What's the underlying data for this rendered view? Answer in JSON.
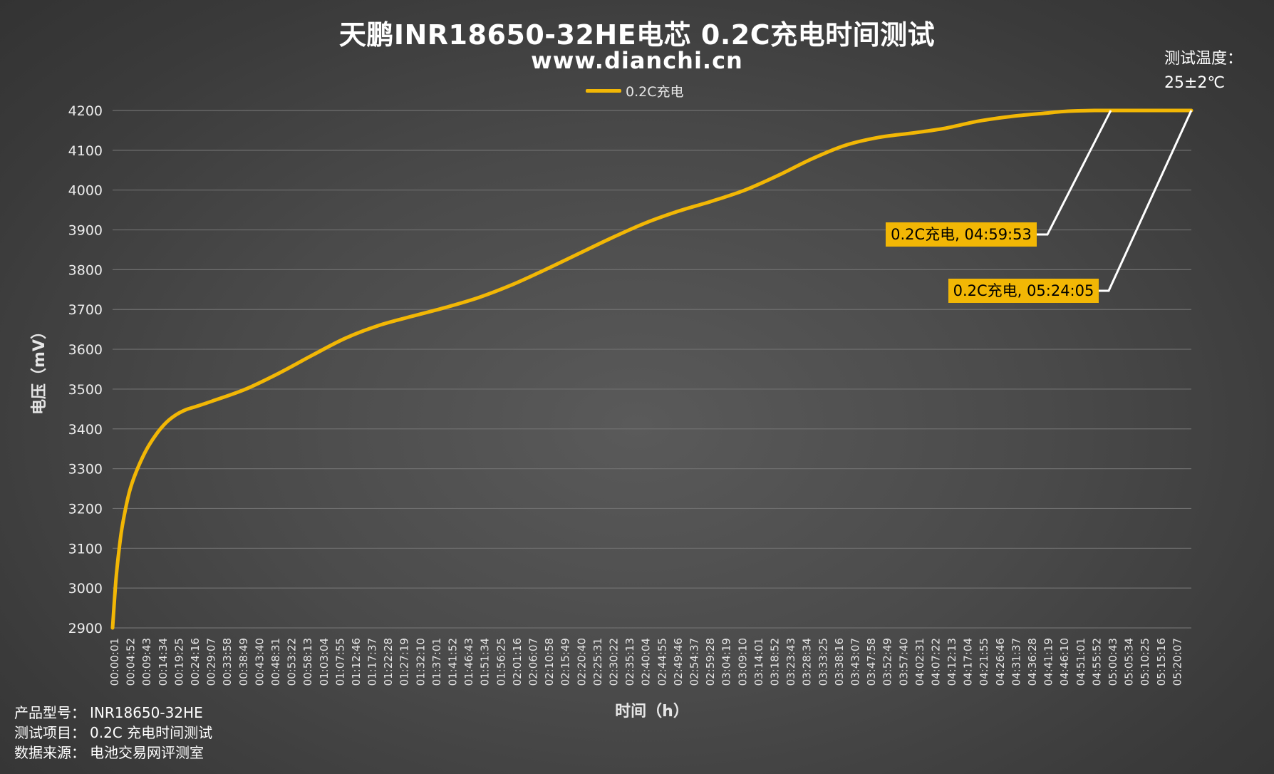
{
  "title": "天鹏INR18650-32HE电芯 0.2C充电时间测试",
  "subtitle": "www.dianchi.cn",
  "temperature": {
    "label": "测试温度：",
    "value": "25±2℃"
  },
  "legend": {
    "label": "0.2C充电",
    "color": "#f2b705"
  },
  "info": [
    {
      "label": "产品型号：",
      "value": "INR18650-32HE"
    },
    {
      "label": "测试项目：",
      "value": "0.2C 充电时间测试"
    },
    {
      "label": "数据来源：",
      "value": "电池交易网评测室"
    }
  ],
  "chart_data": {
    "type": "line",
    "title": "天鹏INR18650-32HE电芯 0.2C充电时间测试",
    "xlabel": "时间（h）",
    "ylabel": "电压（mV）",
    "ylim": [
      2900,
      4200
    ],
    "yticks": [
      2900,
      3000,
      3100,
      3200,
      3300,
      3400,
      3500,
      3600,
      3700,
      3800,
      3900,
      4000,
      4100,
      4200
    ],
    "xticks": [
      "00:00:01",
      "00:04:52",
      "00:09:43",
      "00:14:34",
      "00:19:25",
      "00:24:16",
      "00:29:07",
      "00:33:58",
      "00:38:49",
      "00:43:40",
      "00:48:31",
      "00:53:22",
      "00:58:13",
      "01:03:04",
      "01:07:55",
      "01:12:46",
      "01:17:37",
      "01:22:28",
      "01:27:19",
      "01:32:10",
      "01:37:01",
      "01:41:52",
      "01:46:43",
      "01:51:34",
      "01:56:25",
      "02:01:16",
      "02:06:07",
      "02:10:58",
      "02:15:49",
      "02:20:40",
      "02:25:31",
      "02:30:22",
      "02:35:13",
      "02:40:04",
      "02:44:55",
      "02:49:46",
      "02:54:37",
      "02:59:28",
      "03:04:19",
      "03:09:10",
      "03:14:01",
      "03:18:52",
      "03:23:43",
      "03:28:34",
      "03:33:25",
      "03:38:16",
      "03:43:07",
      "03:47:58",
      "03:52:49",
      "03:57:40",
      "04:02:31",
      "04:07:22",
      "04:12:13",
      "04:17:04",
      "04:21:55",
      "04:26:46",
      "04:31:37",
      "04:36:28",
      "04:41:19",
      "04:46:10",
      "04:51:01",
      "04:55:52",
      "05:00:43",
      "05:05:34",
      "05:10:25",
      "05:15:16",
      "05:20:07"
    ],
    "grid": true,
    "legend_position": "top",
    "series": [
      {
        "name": "0.2C充电",
        "color": "#f2b705",
        "x_minutes": [
          0,
          1,
          2,
          3,
          5,
          7,
          10,
          13,
          16,
          19,
          22,
          25,
          30,
          40,
          50,
          60,
          70,
          80,
          90,
          100,
          110,
          120,
          130,
          140,
          150,
          160,
          170,
          180,
          190,
          200,
          210,
          220,
          230,
          240,
          250,
          260,
          270,
          280,
          285,
          290,
          295,
          299.9,
          310,
          324.1
        ],
        "y": [
          2900,
          3020,
          3100,
          3160,
          3240,
          3290,
          3345,
          3385,
          3415,
          3435,
          3448,
          3456,
          3470,
          3500,
          3540,
          3585,
          3628,
          3660,
          3683,
          3705,
          3730,
          3762,
          3800,
          3840,
          3880,
          3917,
          3947,
          3972,
          4000,
          4037,
          4078,
          4112,
          4132,
          4143,
          4155,
          4173,
          4185,
          4193,
          4197,
          4199,
          4200,
          4200,
          4200,
          4200
        ]
      }
    ],
    "annotations": [
      {
        "text": "0.2C充电, 04:59:53",
        "x_minutes": 299.9,
        "y": 4200
      },
      {
        "text": "0.2C充电, 05:24:05",
        "x_minutes": 324.1,
        "y": 4200
      }
    ]
  }
}
